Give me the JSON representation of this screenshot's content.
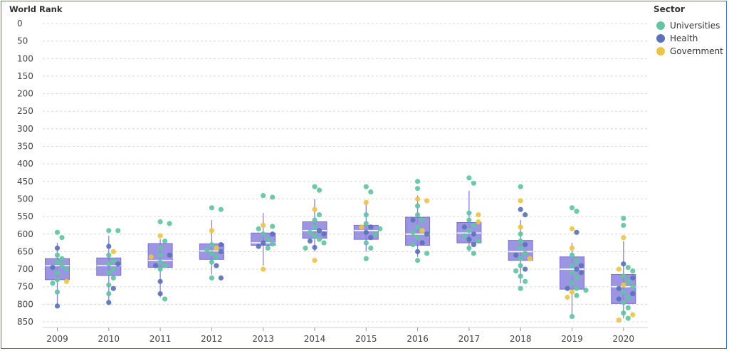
{
  "chart_data": {
    "type": "box-swarm",
    "ylabel": "World Rank",
    "y_inverted": true,
    "ylim": [
      0,
      850
    ],
    "yticks": [
      0,
      50,
      100,
      150,
      200,
      250,
      300,
      350,
      400,
      450,
      500,
      550,
      600,
      650,
      700,
      750,
      800,
      850
    ],
    "grid": true,
    "legend": {
      "title": "Sector",
      "placement": "top-right"
    },
    "categories": [
      "2009",
      "2010",
      "2011",
      "2012",
      "2013",
      "2014",
      "2015",
      "2016",
      "2017",
      "2018",
      "2019",
      "2020"
    ],
    "boxes": [
      {
        "year": "2009",
        "q1": 670,
        "median": 690,
        "q3": 730,
        "whislo": 625,
        "whishi": 800
      },
      {
        "year": "2010",
        "q1": 668,
        "median": 690,
        "q3": 718,
        "whislo": 605,
        "whishi": 790
      },
      {
        "year": "2011",
        "q1": 627,
        "median": 675,
        "q3": 695,
        "whislo": 615,
        "whishi": 780
      },
      {
        "year": "2012",
        "q1": 628,
        "median": 648,
        "q3": 672,
        "whislo": 560,
        "whishi": 715
      },
      {
        "year": "2013",
        "q1": 597,
        "median": 625,
        "q3": 632,
        "whislo": 540,
        "whishi": 690
      },
      {
        "year": "2014",
        "q1": 565,
        "median": 590,
        "q3": 612,
        "whislo": 500,
        "whishi": 650
      },
      {
        "year": "2015",
        "q1": 575,
        "median": 590,
        "q3": 615,
        "whislo": 510,
        "whishi": 650
      },
      {
        "year": "2016",
        "q1": 552,
        "median": 600,
        "q3": 632,
        "whislo": 490,
        "whishi": 665
      },
      {
        "year": "2017",
        "q1": 567,
        "median": 597,
        "q3": 625,
        "whislo": 477,
        "whishi": 650
      },
      {
        "year": "2018",
        "q1": 618,
        "median": 650,
        "q3": 675,
        "whislo": 560,
        "whishi": 740
      },
      {
        "year": "2019",
        "q1": 665,
        "median": 700,
        "q3": 757,
        "whislo": 625,
        "whishi": 830
      },
      {
        "year": "2020",
        "q1": 715,
        "median": 750,
        "q3": 798,
        "whislo": 620,
        "whishi": 840
      }
    ],
    "series": [
      {
        "name": "Universities",
        "color": "#62c4a4",
        "points": [
          {
            "year": "2009",
            "y": 595
          },
          {
            "year": "2009",
            "y": 610
          },
          {
            "year": "2009",
            "y": 660
          },
          {
            "year": "2009",
            "y": 670
          },
          {
            "year": "2009",
            "y": 680
          },
          {
            "year": "2009",
            "y": 690
          },
          {
            "year": "2009",
            "y": 700
          },
          {
            "year": "2009",
            "y": 710
          },
          {
            "year": "2009",
            "y": 730
          },
          {
            "year": "2009",
            "y": 740
          },
          {
            "year": "2009",
            "y": 765
          },
          {
            "year": "2010",
            "y": 590
          },
          {
            "year": "2010",
            "y": 590
          },
          {
            "year": "2010",
            "y": 660
          },
          {
            "year": "2010",
            "y": 675
          },
          {
            "year": "2010",
            "y": 685
          },
          {
            "year": "2010",
            "y": 700
          },
          {
            "year": "2010",
            "y": 710
          },
          {
            "year": "2010",
            "y": 725
          },
          {
            "year": "2010",
            "y": 745
          },
          {
            "year": "2010",
            "y": 770
          },
          {
            "year": "2011",
            "y": 565
          },
          {
            "year": "2011",
            "y": 570
          },
          {
            "year": "2011",
            "y": 620
          },
          {
            "year": "2011",
            "y": 640
          },
          {
            "year": "2011",
            "y": 660
          },
          {
            "year": "2011",
            "y": 680
          },
          {
            "year": "2011",
            "y": 690
          },
          {
            "year": "2011",
            "y": 700
          },
          {
            "year": "2011",
            "y": 785
          },
          {
            "year": "2012",
            "y": 525
          },
          {
            "year": "2012",
            "y": 530
          },
          {
            "year": "2012",
            "y": 630
          },
          {
            "year": "2012",
            "y": 645
          },
          {
            "year": "2012",
            "y": 655
          },
          {
            "year": "2012",
            "y": 665
          },
          {
            "year": "2012",
            "y": 680
          },
          {
            "year": "2012",
            "y": 725
          },
          {
            "year": "2013",
            "y": 490
          },
          {
            "year": "2013",
            "y": 495
          },
          {
            "year": "2013",
            "y": 578
          },
          {
            "year": "2013",
            "y": 585
          },
          {
            "year": "2013",
            "y": 600
          },
          {
            "year": "2013",
            "y": 615
          },
          {
            "year": "2013",
            "y": 628
          },
          {
            "year": "2013",
            "y": 640
          },
          {
            "year": "2014",
            "y": 465
          },
          {
            "year": "2014",
            "y": 475
          },
          {
            "year": "2014",
            "y": 545
          },
          {
            "year": "2014",
            "y": 560
          },
          {
            "year": "2014",
            "y": 580
          },
          {
            "year": "2014",
            "y": 595
          },
          {
            "year": "2014",
            "y": 605
          },
          {
            "year": "2014",
            "y": 615
          },
          {
            "year": "2014",
            "y": 625
          },
          {
            "year": "2014",
            "y": 640
          },
          {
            "year": "2015",
            "y": 465
          },
          {
            "year": "2015",
            "y": 480
          },
          {
            "year": "2015",
            "y": 545
          },
          {
            "year": "2015",
            "y": 570
          },
          {
            "year": "2015",
            "y": 585
          },
          {
            "year": "2015",
            "y": 600
          },
          {
            "year": "2015",
            "y": 625
          },
          {
            "year": "2015",
            "y": 640
          },
          {
            "year": "2015",
            "y": 670
          },
          {
            "year": "2016",
            "y": 450
          },
          {
            "year": "2016",
            "y": 470
          },
          {
            "year": "2016",
            "y": 520
          },
          {
            "year": "2016",
            "y": 545
          },
          {
            "year": "2016",
            "y": 560
          },
          {
            "year": "2016",
            "y": 580
          },
          {
            "year": "2016",
            "y": 595
          },
          {
            "year": "2016",
            "y": 610
          },
          {
            "year": "2016",
            "y": 630
          },
          {
            "year": "2016",
            "y": 655
          },
          {
            "year": "2016",
            "y": 675
          },
          {
            "year": "2017",
            "y": 440
          },
          {
            "year": "2017",
            "y": 455
          },
          {
            "year": "2017",
            "y": 540
          },
          {
            "year": "2017",
            "y": 560
          },
          {
            "year": "2017",
            "y": 575
          },
          {
            "year": "2017",
            "y": 590
          },
          {
            "year": "2017",
            "y": 605
          },
          {
            "year": "2017",
            "y": 620
          },
          {
            "year": "2017",
            "y": 640
          },
          {
            "year": "2017",
            "y": 655
          },
          {
            "year": "2018",
            "y": 465
          },
          {
            "year": "2018",
            "y": 600
          },
          {
            "year": "2018",
            "y": 620
          },
          {
            "year": "2018",
            "y": 640
          },
          {
            "year": "2018",
            "y": 655
          },
          {
            "year": "2018",
            "y": 670
          },
          {
            "year": "2018",
            "y": 690
          },
          {
            "year": "2018",
            "y": 705
          },
          {
            "year": "2018",
            "y": 720
          },
          {
            "year": "2018",
            "y": 735
          },
          {
            "year": "2018",
            "y": 755
          },
          {
            "year": "2019",
            "y": 525
          },
          {
            "year": "2019",
            "y": 535
          },
          {
            "year": "2019",
            "y": 660
          },
          {
            "year": "2019",
            "y": 675
          },
          {
            "year": "2019",
            "y": 690
          },
          {
            "year": "2019",
            "y": 710
          },
          {
            "year": "2019",
            "y": 725
          },
          {
            "year": "2019",
            "y": 740
          },
          {
            "year": "2019",
            "y": 755
          },
          {
            "year": "2019",
            "y": 760
          },
          {
            "year": "2019",
            "y": 775
          },
          {
            "year": "2019",
            "y": 835
          },
          {
            "year": "2020",
            "y": 555
          },
          {
            "year": "2020",
            "y": 575
          },
          {
            "year": "2020",
            "y": 695
          },
          {
            "year": "2020",
            "y": 705
          },
          {
            "year": "2020",
            "y": 720
          },
          {
            "year": "2020",
            "y": 735
          },
          {
            "year": "2020",
            "y": 750
          },
          {
            "year": "2020",
            "y": 765
          },
          {
            "year": "2020",
            "y": 780
          },
          {
            "year": "2020",
            "y": 795
          },
          {
            "year": "2020",
            "y": 810
          },
          {
            "year": "2020",
            "y": 825
          },
          {
            "year": "2020",
            "y": 840
          }
        ]
      },
      {
        "name": "Health",
        "color": "#5b72b8",
        "points": [
          {
            "year": "2009",
            "y": 640
          },
          {
            "year": "2009",
            "y": 695
          },
          {
            "year": "2009",
            "y": 805
          },
          {
            "year": "2010",
            "y": 635
          },
          {
            "year": "2010",
            "y": 685
          },
          {
            "year": "2010",
            "y": 755
          },
          {
            "year": "2010",
            "y": 795
          },
          {
            "year": "2011",
            "y": 660
          },
          {
            "year": "2011",
            "y": 690
          },
          {
            "year": "2011",
            "y": 735
          },
          {
            "year": "2011",
            "y": 770
          },
          {
            "year": "2012",
            "y": 630
          },
          {
            "year": "2012",
            "y": 650
          },
          {
            "year": "2012",
            "y": 690
          },
          {
            "year": "2012",
            "y": 725
          },
          {
            "year": "2013",
            "y": 600
          },
          {
            "year": "2013",
            "y": 625
          },
          {
            "year": "2013",
            "y": 635
          },
          {
            "year": "2014",
            "y": 590
          },
          {
            "year": "2014",
            "y": 600
          },
          {
            "year": "2014",
            "y": 620
          },
          {
            "year": "2014",
            "y": 638
          },
          {
            "year": "2015",
            "y": 580
          },
          {
            "year": "2015",
            "y": 595
          },
          {
            "year": "2015",
            "y": 610
          },
          {
            "year": "2016",
            "y": 560
          },
          {
            "year": "2016",
            "y": 600
          },
          {
            "year": "2016",
            "y": 625
          },
          {
            "year": "2016",
            "y": 650
          },
          {
            "year": "2017",
            "y": 580
          },
          {
            "year": "2017",
            "y": 600
          },
          {
            "year": "2017",
            "y": 615
          },
          {
            "year": "2017",
            "y": 630
          },
          {
            "year": "2018",
            "y": 530
          },
          {
            "year": "2018",
            "y": 545
          },
          {
            "year": "2018",
            "y": 630
          },
          {
            "year": "2018",
            "y": 660
          },
          {
            "year": "2018",
            "y": 700
          },
          {
            "year": "2019",
            "y": 595
          },
          {
            "year": "2019",
            "y": 690
          },
          {
            "year": "2019",
            "y": 700
          },
          {
            "year": "2019",
            "y": 710
          },
          {
            "year": "2019",
            "y": 755
          },
          {
            "year": "2020",
            "y": 685
          },
          {
            "year": "2020",
            "y": 725
          },
          {
            "year": "2020",
            "y": 755
          },
          {
            "year": "2020",
            "y": 770
          },
          {
            "year": "2020",
            "y": 785
          }
        ]
      },
      {
        "name": "Government",
        "color": "#ecc44a",
        "points": [
          {
            "year": "2009",
            "y": 735
          },
          {
            "year": "2010",
            "y": 650
          },
          {
            "year": "2011",
            "y": 605
          },
          {
            "year": "2011",
            "y": 665
          },
          {
            "year": "2012",
            "y": 590
          },
          {
            "year": "2012",
            "y": 640
          },
          {
            "year": "2013",
            "y": 575
          },
          {
            "year": "2013",
            "y": 700
          },
          {
            "year": "2014",
            "y": 530
          },
          {
            "year": "2014",
            "y": 675
          },
          {
            "year": "2015",
            "y": 510
          },
          {
            "year": "2015",
            "y": 580
          },
          {
            "year": "2016",
            "y": 500
          },
          {
            "year": "2016",
            "y": 505
          },
          {
            "year": "2016",
            "y": 590
          },
          {
            "year": "2017",
            "y": 545
          },
          {
            "year": "2017",
            "y": 565
          },
          {
            "year": "2018",
            "y": 505
          },
          {
            "year": "2018",
            "y": 580
          },
          {
            "year": "2018",
            "y": 670
          },
          {
            "year": "2019",
            "y": 585
          },
          {
            "year": "2019",
            "y": 640
          },
          {
            "year": "2019",
            "y": 765
          },
          {
            "year": "2019",
            "y": 780
          },
          {
            "year": "2020",
            "y": 610
          },
          {
            "year": "2020",
            "y": 700
          },
          {
            "year": "2020",
            "y": 745
          },
          {
            "year": "2020",
            "y": 830
          },
          {
            "year": "2020",
            "y": 845
          }
        ]
      }
    ]
  }
}
